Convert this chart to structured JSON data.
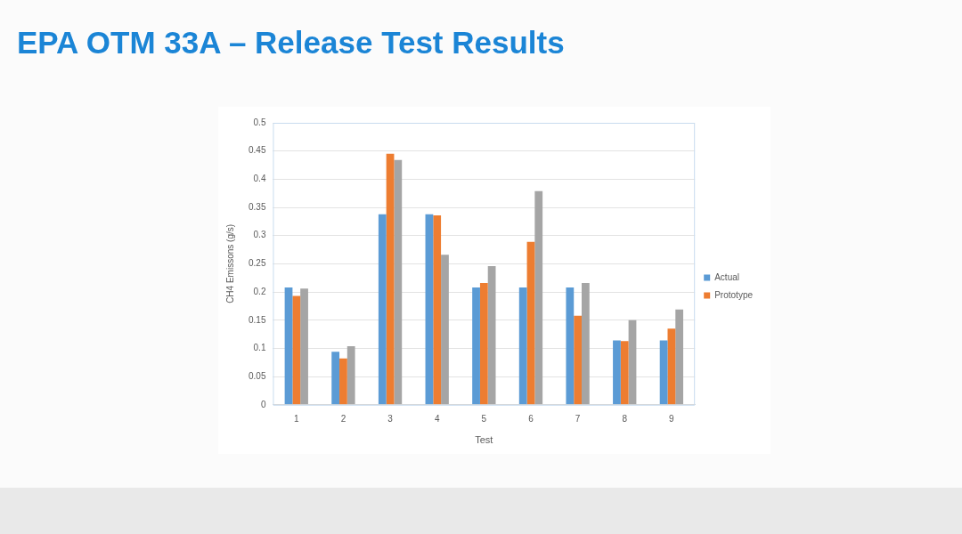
{
  "chart_data": {
    "type": "bar",
    "title": "EPA OTM 33A – Release Test Results",
    "xlabel": "Test",
    "ylabel": "CH4 Emissons (g/s)",
    "categories": [
      "1",
      "2",
      "3",
      "4",
      "5",
      "6",
      "7",
      "8",
      "9"
    ],
    "series": [
      {
        "name": "Actual",
        "color": "#5b9bd5",
        "values": [
          0.208,
          0.094,
          0.338,
          0.338,
          0.208,
          0.208,
          0.208,
          0.114,
          0.114
        ]
      },
      {
        "name": "Prototype",
        "color": "#ed7d31",
        "values": [
          0.193,
          0.082,
          0.445,
          0.336,
          0.216,
          0.289,
          0.158,
          0.113,
          0.135
        ]
      },
      {
        "color": "#a5a5a5",
        "values": [
          0.206,
          0.104,
          0.434,
          0.266,
          0.246,
          0.379,
          0.216,
          0.15,
          0.169
        ]
      }
    ],
    "ylim": [
      0,
      0.5
    ],
    "yticks": [
      0,
      0.05,
      0.1,
      0.15,
      0.2,
      0.25,
      0.3,
      0.35,
      0.4,
      0.45,
      0.5
    ],
    "grid": "y",
    "legend": "right"
  }
}
